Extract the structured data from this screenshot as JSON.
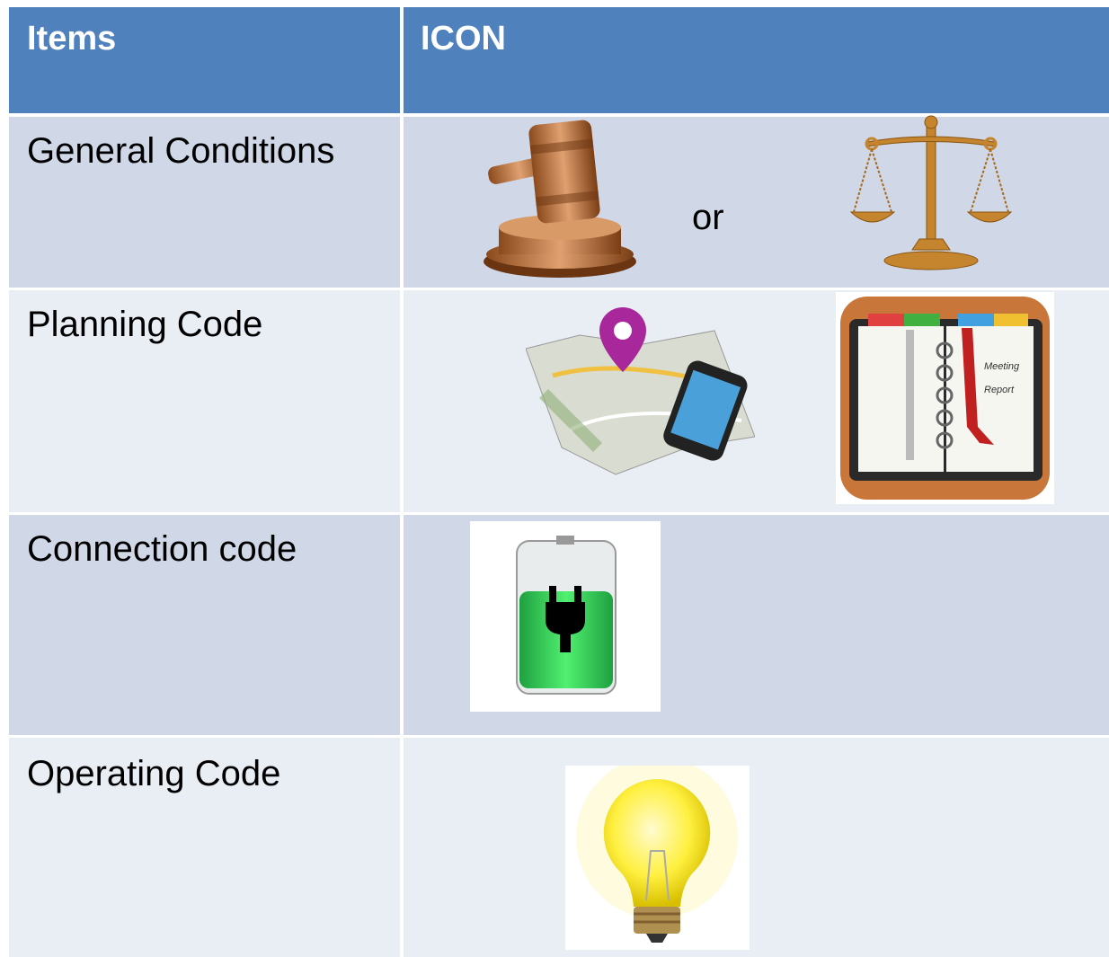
{
  "table": {
    "header": [
      "Items",
      "ICON"
    ],
    "rows": [
      {
        "item": "General Conditions",
        "separator": "or"
      },
      {
        "item": "Planning Code",
        "icon_labels": [
          "Meeting",
          "Report"
        ]
      },
      {
        "item": "Connection code"
      },
      {
        "item": "Operating Code"
      }
    ]
  }
}
